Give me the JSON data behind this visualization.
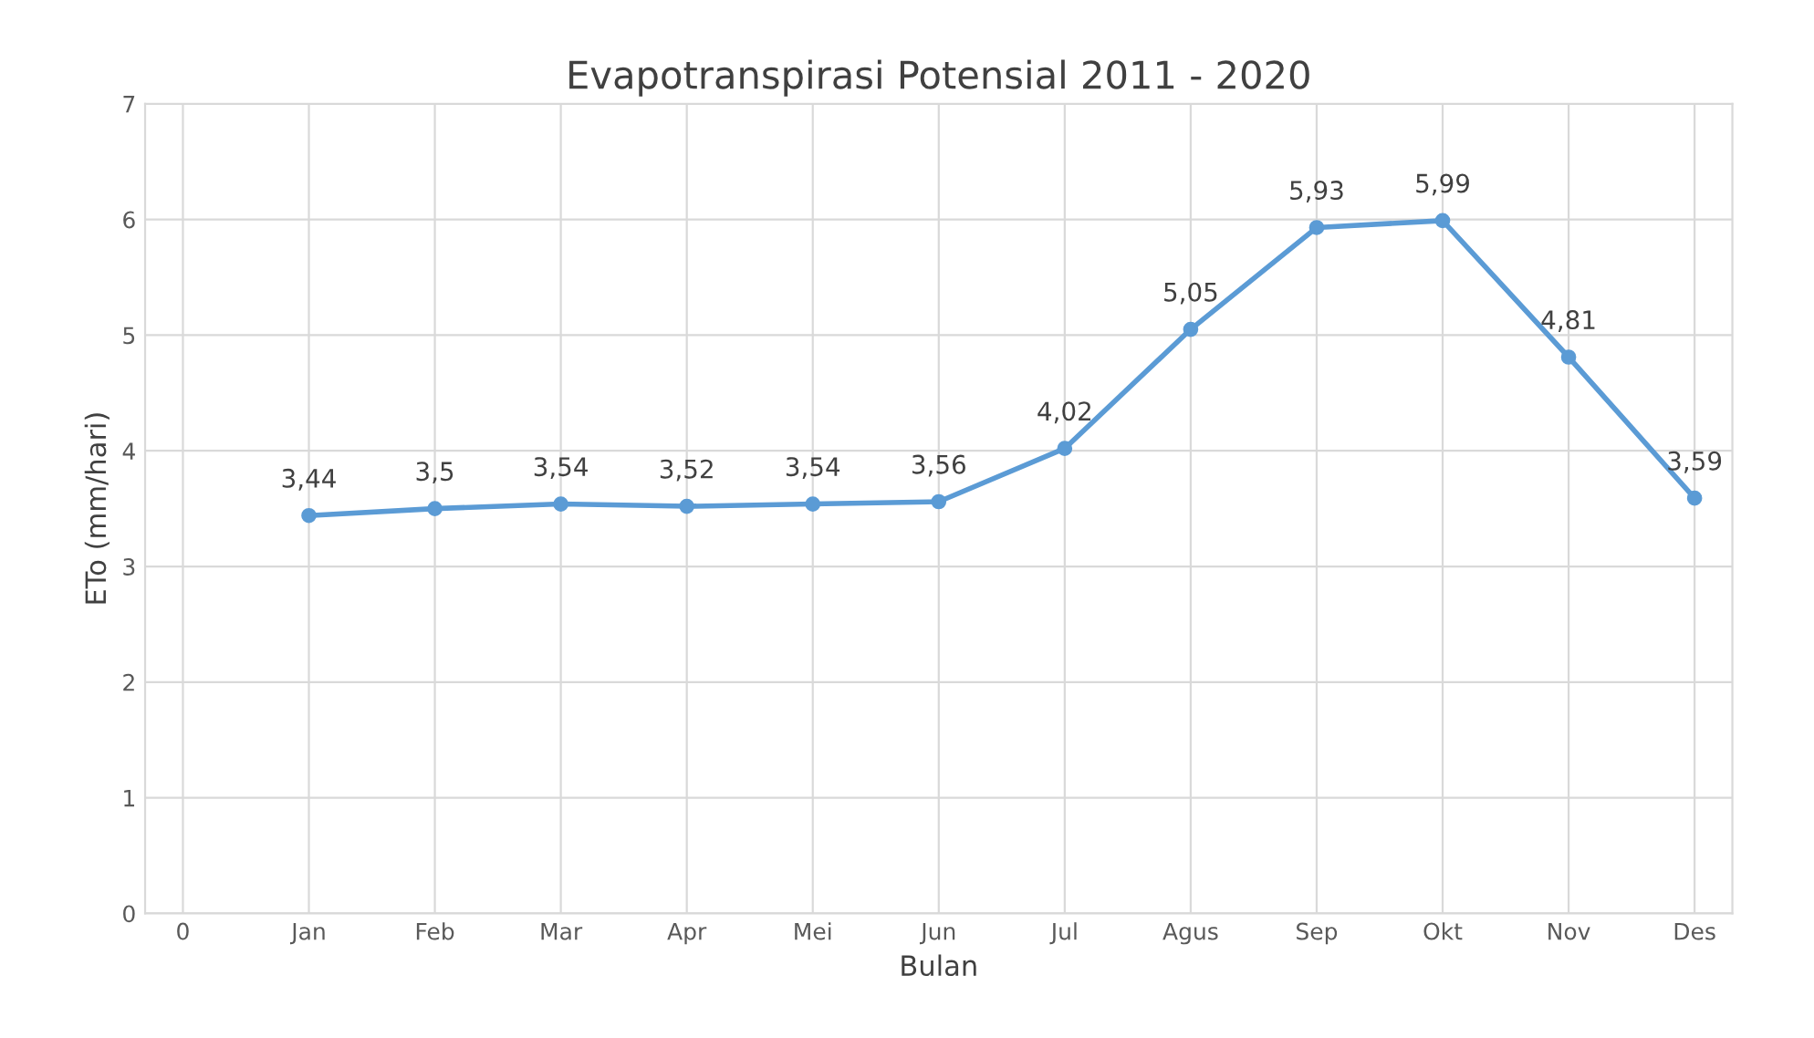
{
  "chart_data": {
    "type": "line",
    "title": "Evapotranspirasi Potensial 2011 - 2020",
    "xlabel": "Bulan",
    "ylabel": "ETo (mm/hari)",
    "categories": [
      "0",
      "Jan",
      "Feb",
      "Mar",
      "Apr",
      "Mei",
      "Jun",
      "Jul",
      "Agus",
      "Sep",
      "Okt",
      "Nov",
      "Des"
    ],
    "series": [
      {
        "color": "#5b9bd5",
        "values": [
          null,
          3.44,
          3.5,
          3.54,
          3.52,
          3.54,
          3.56,
          4.02,
          5.05,
          5.93,
          5.99,
          4.81,
          3.59
        ],
        "value_labels": [
          null,
          "3,44",
          "3,5",
          "3,54",
          "3,52",
          "3,54",
          "3,56",
          "4,02",
          "5,05",
          "5,93",
          "5,99",
          "4,81",
          "3,59"
        ]
      }
    ],
    "ylim": [
      0,
      7
    ],
    "yticks": [
      0,
      1,
      2,
      3,
      4,
      5,
      6,
      7
    ],
    "grid": true,
    "marker": "circle",
    "line_style": "solid"
  }
}
